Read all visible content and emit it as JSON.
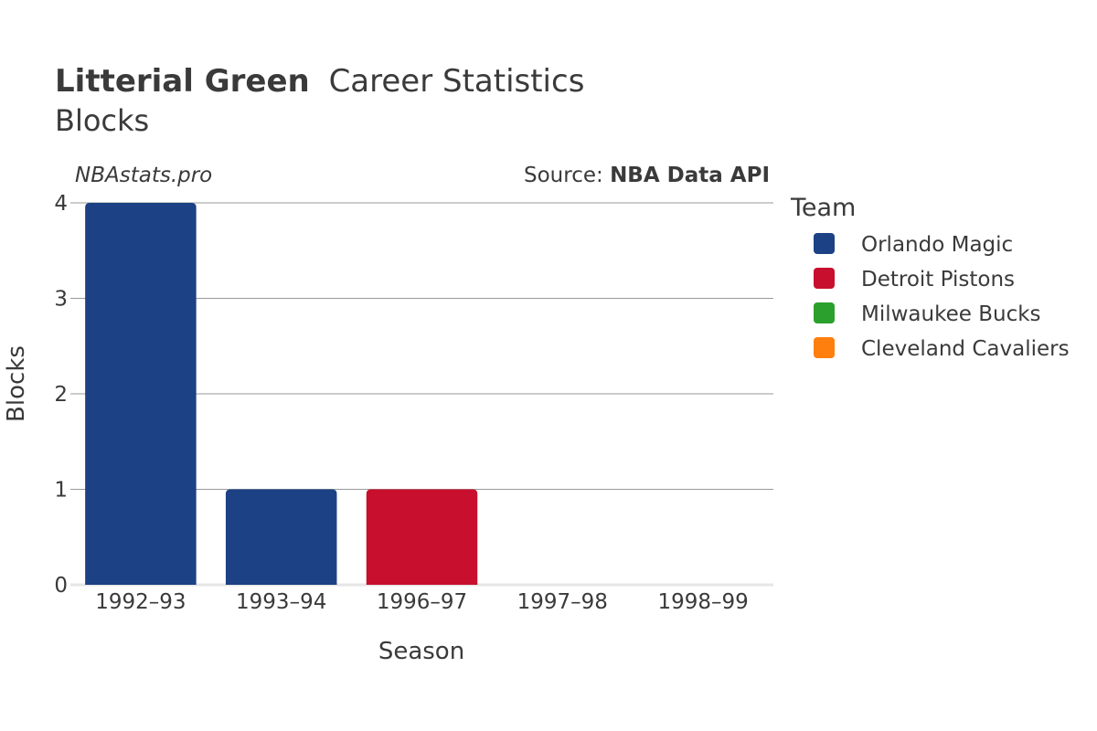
{
  "title": {
    "player": "Litterial Green",
    "suffix": "Career Statistics",
    "subtitle": "Blocks"
  },
  "watermark": "NBAstats.pro",
  "source": {
    "label": "Source: ",
    "value": "NBA Data API"
  },
  "legend": {
    "title": "Team",
    "items": [
      {
        "name": "Orlando Magic",
        "color": "#1c4184"
      },
      {
        "name": "Detroit Pistons",
        "color": "#c8102e"
      },
      {
        "name": "Milwaukee Bucks",
        "color": "#2ca02c"
      },
      {
        "name": "Cleveland Cavaliers",
        "color": "#ff7f0e"
      }
    ]
  },
  "chart_data": {
    "type": "bar",
    "title": "Litterial Green Career Statistics",
    "subtitle": "Blocks",
    "xlabel": "Season",
    "ylabel": "Blocks",
    "categories": [
      "1992–93",
      "1993–94",
      "1996–97",
      "1997–98",
      "1998–99"
    ],
    "series": [
      {
        "name": "Orlando Magic",
        "color": "#1c4184",
        "values": [
          4,
          1,
          0,
          0,
          0
        ]
      },
      {
        "name": "Detroit Pistons",
        "color": "#c8102e",
        "values": [
          0,
          0,
          1,
          0,
          0
        ]
      },
      {
        "name": "Milwaukee Bucks",
        "color": "#2ca02c",
        "values": [
          0,
          0,
          0,
          0,
          0
        ]
      },
      {
        "name": "Cleveland Cavaliers",
        "color": "#ff7f0e",
        "values": [
          0,
          0,
          0,
          0,
          0
        ]
      }
    ],
    "ylim": [
      0,
      4
    ],
    "yticks": [
      0,
      1,
      2,
      3,
      4
    ],
    "grid": true,
    "legend_position": "right"
  }
}
